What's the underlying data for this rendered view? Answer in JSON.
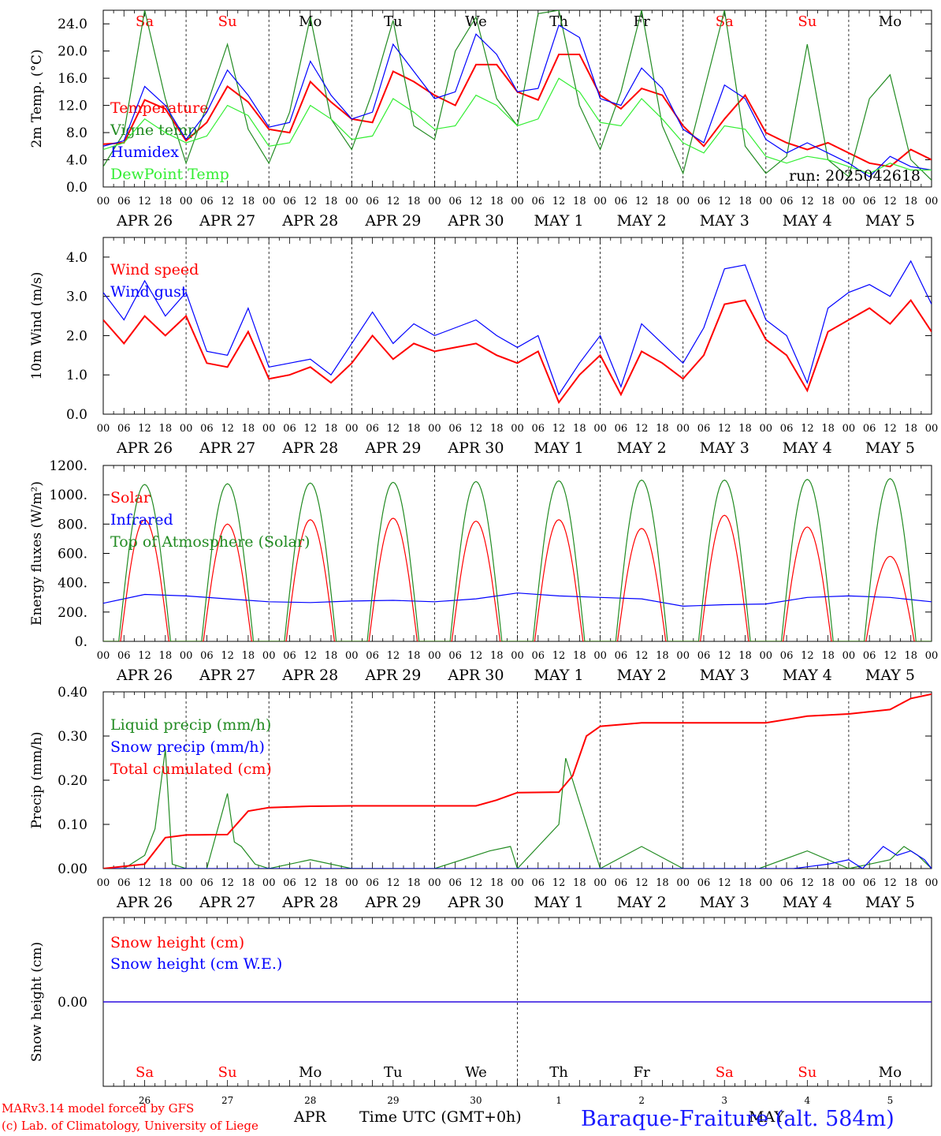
{
  "meteogram": {
    "station": "Baraque-Fraiture (alt. 584m)",
    "footer_model": "MARv3.14 model forced by GFS",
    "footer_lab": "(c) Lab. of Climatology, University of Liege",
    "footer_month_left": "APR",
    "footer_month_right": "MAY",
    "footer_axis_label": "Time UTC (GMT+0h)",
    "run_label": "run: 2025042618",
    "days": [
      "Sa",
      "Su",
      "Mo",
      "Tu",
      "We",
      "Th",
      "Fr",
      "Sa",
      "Su",
      "Mo"
    ],
    "day_colors": [
      "#ff0000",
      "#ff0000",
      "#000000",
      "#000000",
      "#000000",
      "#000000",
      "#000000",
      "#ff0000",
      "#ff0000",
      "#000000"
    ],
    "dates": [
      "APR 26",
      "APR 27",
      "APR 28",
      "APR 29",
      "APR 30",
      "MAY  1",
      "MAY  2",
      "MAY  3",
      "MAY  4",
      "MAY  5"
    ],
    "day_numbers": [
      "26",
      "27",
      "28",
      "29",
      "30",
      "1",
      "2",
      "3",
      "4",
      "5"
    ],
    "hour_ticks": [
      "00",
      "06",
      "12",
      "18"
    ],
    "last_hour_tick": "00"
  },
  "chart_data": [
    {
      "type": "line",
      "ylabel": "2m Temp. (°C)",
      "ylim": [
        0,
        26
      ],
      "yticks": [
        "0.0",
        "4.0",
        "8.0",
        "12.0",
        "16.0",
        "20.0",
        "24.0"
      ],
      "ytick_values": [
        0,
        4,
        8,
        12,
        16,
        20,
        24
      ],
      "x_unit": "hours since APR 26 00 UTC (6-hourly)",
      "series": [
        {
          "name": "Temperature",
          "color": "#ff0000",
          "x": [
            0,
            6,
            12,
            18,
            24,
            30,
            36,
            42,
            48,
            54,
            60,
            66,
            72,
            78,
            84,
            90,
            96,
            102,
            108,
            114,
            120,
            126,
            132,
            138,
            144,
            150,
            156,
            162,
            168,
            174,
            180,
            186,
            192,
            198,
            204,
            210,
            216,
            222,
            228,
            234,
            240
          ],
          "y": [
            6.3,
            6.5,
            12.8,
            11.5,
            6.8,
            9.5,
            14.8,
            12.5,
            8.5,
            8.0,
            15.5,
            12.5,
            10.0,
            9.5,
            17.0,
            15.5,
            13.5,
            12.0,
            18.0,
            18.0,
            14.0,
            12.8,
            19.5,
            19.5,
            13.5,
            11.5,
            14.5,
            13.5,
            9.0,
            6.0,
            10.0,
            13.5,
            8.0,
            6.5,
            5.5,
            6.5,
            5.0,
            3.5,
            3.0,
            5.5,
            4.0
          ]
        },
        {
          "name": "Vigne temp",
          "color": "#228b22",
          "x": [
            0,
            6,
            12,
            18,
            24,
            30,
            36,
            42,
            48,
            54,
            60,
            66,
            72,
            78,
            84,
            90,
            96,
            102,
            108,
            114,
            120,
            126,
            132,
            138,
            144,
            150,
            156,
            162,
            168,
            174,
            180,
            186,
            192,
            198,
            204,
            210,
            216,
            222,
            228,
            234,
            240
          ],
          "y": [
            3.0,
            8.0,
            26.0,
            13.0,
            3.5,
            12.0,
            21.0,
            8.5,
            3.5,
            11.0,
            25.0,
            10.0,
            5.5,
            14.0,
            24.5,
            9.0,
            7.0,
            20.0,
            25.0,
            13.0,
            9.0,
            25.5,
            26.0,
            12.0,
            5.5,
            14.0,
            26.0,
            9.0,
            2.0,
            14.0,
            26.0,
            6.0,
            2.0,
            4.5,
            21.0,
            4.0,
            1.5,
            13.0,
            16.5,
            4.0,
            1.0
          ]
        },
        {
          "name": "Humidex",
          "color": "#0000ff",
          "x": [
            0,
            6,
            12,
            18,
            24,
            30,
            36,
            42,
            48,
            54,
            60,
            66,
            72,
            78,
            84,
            90,
            96,
            102,
            108,
            114,
            120,
            126,
            132,
            138,
            144,
            150,
            156,
            162,
            168,
            174,
            180,
            186,
            192,
            198,
            204,
            210,
            216,
            222,
            228,
            234,
            240
          ],
          "y": [
            6.0,
            6.8,
            14.8,
            12.0,
            7.0,
            11.0,
            17.2,
            13.5,
            8.8,
            9.5,
            18.5,
            13.5,
            10.0,
            11.0,
            21.0,
            17.0,
            13.0,
            14.0,
            22.5,
            19.5,
            14.0,
            14.5,
            23.8,
            22.0,
            13.0,
            12.0,
            17.5,
            14.5,
            8.5,
            6.5,
            15.0,
            13.0,
            7.0,
            5.0,
            6.5,
            5.0,
            3.5,
            1.5,
            4.5,
            3.0,
            2.5
          ]
        },
        {
          "name": "DewPoint Temp",
          "color": "#33ee33",
          "x": [
            0,
            6,
            12,
            18,
            24,
            30,
            36,
            42,
            48,
            54,
            60,
            66,
            72,
            78,
            84,
            90,
            96,
            102,
            108,
            114,
            120,
            126,
            132,
            138,
            144,
            150,
            156,
            162,
            168,
            174,
            180,
            186,
            192,
            198,
            204,
            210,
            216,
            222,
            228,
            234,
            240
          ],
          "y": [
            5.5,
            6.5,
            10.0,
            8.0,
            6.5,
            7.5,
            12.0,
            10.5,
            6.0,
            6.5,
            12.0,
            10.0,
            7.0,
            7.5,
            13.0,
            11.0,
            8.5,
            9.0,
            13.5,
            12.0,
            9.0,
            10.0,
            16.0,
            14.0,
            9.5,
            9.0,
            13.0,
            10.0,
            6.5,
            5.0,
            9.0,
            8.5,
            4.5,
            3.5,
            4.5,
            4.0,
            3.0,
            2.0,
            3.5,
            2.5,
            2.5
          ]
        }
      ]
    },
    {
      "type": "line",
      "ylabel": "10m Wind (m/s)",
      "ylim": [
        0,
        4.5
      ],
      "yticks": [
        "0.0",
        "1.0",
        "2.0",
        "3.0",
        "4.0"
      ],
      "ytick_values": [
        0,
        1,
        2,
        3,
        4
      ],
      "series": [
        {
          "name": "Wind speed",
          "color": "#ff0000",
          "x": [
            0,
            6,
            12,
            18,
            24,
            30,
            36,
            42,
            48,
            54,
            60,
            66,
            72,
            78,
            84,
            90,
            96,
            102,
            108,
            114,
            120,
            126,
            132,
            138,
            144,
            150,
            156,
            162,
            168,
            174,
            180,
            186,
            192,
            198,
            204,
            210,
            216,
            222,
            228,
            234,
            240
          ],
          "y": [
            2.4,
            1.8,
            2.5,
            2.0,
            2.5,
            1.3,
            1.2,
            2.1,
            0.9,
            1.0,
            1.2,
            0.8,
            1.3,
            2.0,
            1.4,
            1.8,
            1.6,
            1.7,
            1.8,
            1.5,
            1.3,
            1.6,
            0.3,
            1.0,
            1.5,
            0.5,
            1.6,
            1.3,
            0.9,
            1.5,
            2.8,
            2.9,
            1.9,
            1.5,
            0.6,
            2.1,
            2.4,
            2.7,
            2.3,
            2.9,
            2.1
          ]
        },
        {
          "name": "Wind gust",
          "color": "#0000ff",
          "x": [
            0,
            6,
            12,
            18,
            24,
            30,
            36,
            42,
            48,
            54,
            60,
            66,
            72,
            78,
            84,
            90,
            96,
            102,
            108,
            114,
            120,
            126,
            132,
            138,
            144,
            150,
            156,
            162,
            168,
            174,
            180,
            186,
            192,
            198,
            204,
            210,
            216,
            222,
            228,
            234,
            240
          ],
          "y": [
            3.1,
            2.4,
            3.4,
            2.5,
            3.1,
            1.6,
            1.5,
            2.7,
            1.2,
            1.3,
            1.4,
            1.0,
            1.8,
            2.6,
            1.8,
            2.3,
            2.0,
            2.2,
            2.4,
            2.0,
            1.7,
            2.0,
            0.5,
            1.3,
            2.0,
            0.7,
            2.3,
            1.8,
            1.3,
            2.2,
            3.7,
            3.8,
            2.4,
            2.0,
            0.8,
            2.7,
            3.1,
            3.3,
            3.0,
            3.9,
            2.8
          ]
        }
      ]
    },
    {
      "type": "line",
      "ylabel": "Energy fluxes (W/m²)",
      "ylim": [
        0,
        1200
      ],
      "yticks": [
        "0.",
        "200.",
        "400.",
        "600.",
        "800.",
        "1000.",
        "1200."
      ],
      "ytick_values": [
        0,
        200,
        400,
        600,
        800,
        1000,
        1200
      ],
      "daily_peaks": {
        "solar": [
          830,
          800,
          830,
          840,
          820,
          830,
          770,
          860,
          780,
          580
        ],
        "toa_solar": [
          1070,
          1075,
          1080,
          1085,
          1090,
          1095,
          1100,
          1100,
          1105,
          1110
        ]
      },
      "series": [
        {
          "name": "Solar",
          "color": "#ff0000"
        },
        {
          "name": "Infrared",
          "color": "#0000ff",
          "x": [
            0,
            12,
            24,
            36,
            48,
            60,
            72,
            84,
            96,
            108,
            120,
            132,
            144,
            156,
            168,
            180,
            192,
            204,
            216,
            228,
            240
          ],
          "y": [
            260,
            320,
            310,
            290,
            270,
            265,
            275,
            280,
            270,
            290,
            330,
            310,
            300,
            290,
            240,
            250,
            255,
            300,
            310,
            300,
            270
          ]
        },
        {
          "name": "Top of Atmosphere (Solar)",
          "color": "#228b22"
        }
      ]
    },
    {
      "type": "line",
      "ylabel": "Precip (mm/h)",
      "ylim": [
        0,
        0.4
      ],
      "yticks": [
        "0.00",
        "0.10",
        "0.20",
        "0.30",
        "0.40"
      ],
      "ytick_values": [
        0,
        0.1,
        0.2,
        0.3,
        0.4
      ],
      "series": [
        {
          "name": "Liquid precip (mm/h)",
          "color": "#228b22",
          "x": [
            0,
            6,
            12,
            15,
            18,
            20,
            24,
            30,
            36,
            38,
            40,
            44,
            48,
            60,
            72,
            84,
            96,
            108,
            112,
            118,
            120,
            132,
            134,
            136,
            138,
            140,
            142,
            144,
            156,
            168,
            174,
            180,
            190,
            204,
            216,
            222,
            228,
            232,
            236,
            240
          ],
          "y": [
            0,
            0,
            0.03,
            0.09,
            0.27,
            0.01,
            0,
            0,
            0.17,
            0.06,
            0.05,
            0.01,
            0,
            0.02,
            0,
            0,
            0,
            0.03,
            0.04,
            0.05,
            0,
            0.1,
            0.25,
            0.2,
            0.15,
            0.1,
            0.05,
            0,
            0.05,
            0,
            0,
            0,
            0,
            0.04,
            0,
            0.01,
            0.02,
            0.05,
            0.03,
            0
          ]
        },
        {
          "name": "Snow precip (mm/h)",
          "color": "#0000ff",
          "x": [
            0,
            200,
            210,
            216,
            220,
            226,
            230,
            234,
            238,
            240
          ],
          "y": [
            0,
            0,
            0.01,
            0.02,
            0,
            0.05,
            0.03,
            0.04,
            0.02,
            0
          ]
        },
        {
          "name": "Total cumulated (cm)",
          "color": "#ff0000",
          "x": [
            0,
            12,
            18,
            24,
            36,
            42,
            48,
            60,
            72,
            84,
            96,
            108,
            114,
            120,
            132,
            136,
            140,
            144,
            156,
            168,
            180,
            192,
            204,
            216,
            228,
            234,
            240
          ],
          "y": [
            0,
            0.01,
            0.07,
            0.076,
            0.077,
            0.13,
            0.138,
            0.141,
            0.142,
            0.142,
            0.142,
            0.142,
            0.155,
            0.172,
            0.173,
            0.21,
            0.3,
            0.322,
            0.33,
            0.33,
            0.33,
            0.33,
            0.345,
            0.35,
            0.36,
            0.385,
            0.395
          ]
        }
      ]
    },
    {
      "type": "line",
      "ylabel": "Snow height (cm)",
      "ylim": [
        -1,
        1
      ],
      "yticks": [
        "0.00"
      ],
      "ytick_values": [
        0
      ],
      "series": [
        {
          "name": "Snow height (cm)",
          "color": "#ff0000",
          "x": [
            0,
            240
          ],
          "y": [
            0,
            0
          ]
        },
        {
          "name": "Snow height (cm W.E.)",
          "color": "#0000ff",
          "x": [
            0,
            240
          ],
          "y": [
            0,
            0
          ]
        }
      ]
    }
  ]
}
